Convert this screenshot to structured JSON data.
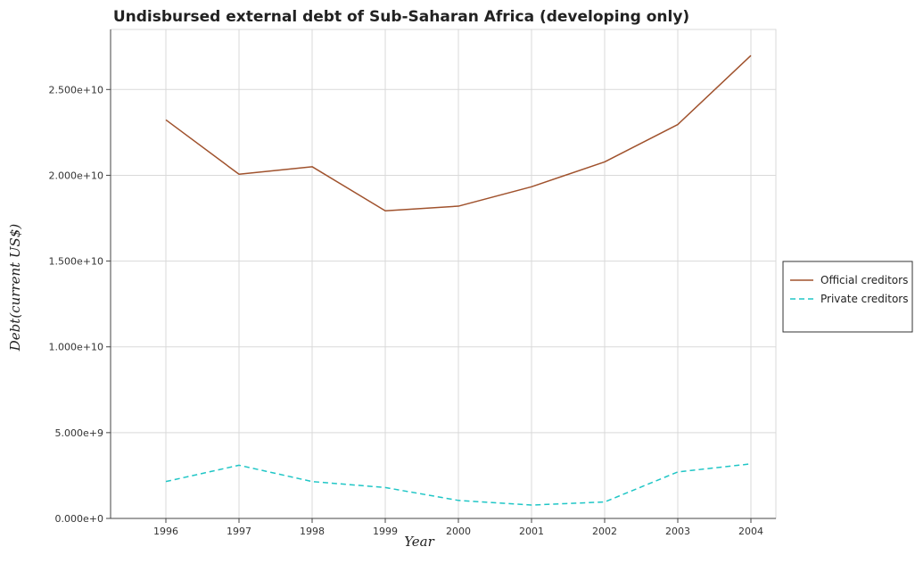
{
  "chart_data": {
    "type": "line",
    "title": "Undisbursed external debt of Sub-Saharan Africa (developing only)",
    "xlabel": "Year",
    "ylabel": "Debt(current US$)",
    "categories": [
      "1996",
      "1997",
      "1998",
      "1999",
      "2000",
      "2001",
      "2002",
      "2003",
      "2004"
    ],
    "ylim": [
      0,
      28500000000
    ],
    "yticks": [
      0,
      5000000000,
      10000000000,
      15000000000,
      20000000000,
      25000000000
    ],
    "ytick_labels": [
      "0.000e+0",
      "5.000e+9",
      "1.000e+10",
      "1.500e+10",
      "2.000e+10",
      "2.500e+10"
    ],
    "grid": true,
    "legend_position": "right",
    "series": [
      {
        "name": "Official creditors",
        "color": "#a0522d",
        "dash": "solid",
        "values": [
          23230000000,
          20060000000,
          20500000000,
          17930000000,
          18200000000,
          19330000000,
          20780000000,
          22960000000,
          26980000000
        ]
      },
      {
        "name": "Private creditors",
        "color": "#20c6c6",
        "dash": "dashed",
        "values": [
          2150000000,
          3100000000,
          2150000000,
          1800000000,
          1050000000,
          780000000,
          960000000,
          2710000000,
          3180000000
        ]
      }
    ]
  }
}
